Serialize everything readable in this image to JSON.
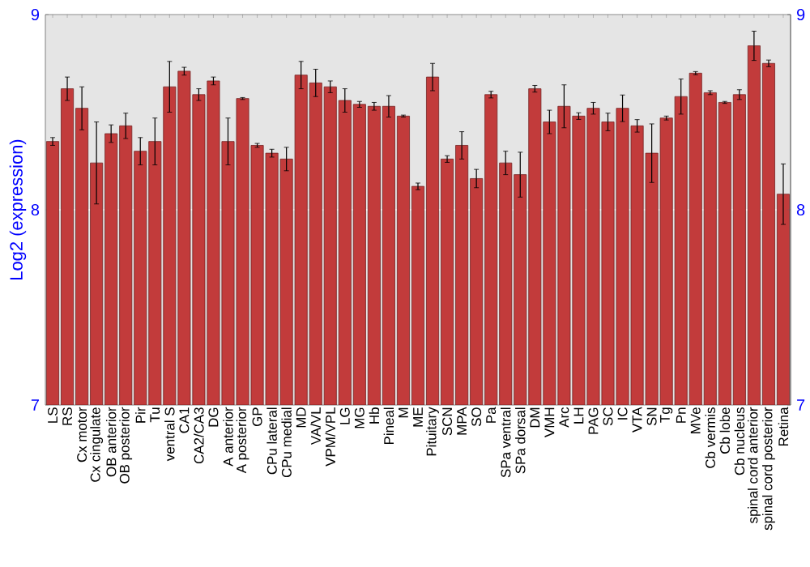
{
  "chart_data": {
    "type": "bar",
    "ylabel": "Log2 (expression)",
    "categories": [
      "LS",
      "RS",
      "Cx motor",
      "Cx cingulate",
      "OB anterior",
      "OB posterior",
      "Pir",
      "Tu",
      "ventral S",
      "CA1",
      "CA2/CA3",
      "DG",
      "A anterior",
      "A posterior",
      "GP",
      "CPu lateral",
      "CPu medial",
      "MD",
      "VA/VL",
      "VPM/VPL",
      "LG",
      "MG",
      "Hb",
      "Pineal",
      "M",
      "ME",
      "Pituitary",
      "SCN",
      "MPA",
      "SO",
      "Pa",
      "SPa ventral",
      "SPa dorsal",
      "DM",
      "VMH",
      "Arc",
      "LH",
      "PAG",
      "SC",
      "IC",
      "VTA",
      "SN",
      "Tg",
      "Pn",
      "MVe",
      "Cb vermis",
      "Cb lobe",
      "Cb nucleus",
      "spinal cord anterior",
      "spinal cord posterior",
      "Retina"
    ],
    "values": [
      8.35,
      8.62,
      8.52,
      8.24,
      8.39,
      8.43,
      8.3,
      8.35,
      8.63,
      8.71,
      8.59,
      8.66,
      8.35,
      8.57,
      8.33,
      8.29,
      8.26,
      8.69,
      8.65,
      8.63,
      8.56,
      8.54,
      8.53,
      8.53,
      8.48,
      8.12,
      8.68,
      8.26,
      8.33,
      8.16,
      8.59,
      8.24,
      8.18,
      8.62,
      8.45,
      8.53,
      8.48,
      8.52,
      8.45,
      8.52,
      8.43,
      8.29,
      8.47,
      8.58,
      8.7,
      8.6,
      8.55,
      8.59,
      8.84,
      8.75,
      8.08
    ],
    "errors": [
      0.02,
      0.06,
      0.11,
      0.21,
      0.045,
      0.065,
      0.07,
      0.12,
      0.13,
      0.02,
      0.03,
      0.02,
      0.12,
      0.005,
      0.01,
      0.02,
      0.06,
      0.07,
      0.07,
      0.03,
      0.06,
      0.015,
      0.02,
      0.055,
      0.005,
      0.017,
      0.07,
      0.017,
      0.07,
      0.047,
      0.017,
      0.06,
      0.115,
      0.017,
      0.06,
      0.11,
      0.017,
      0.03,
      0.045,
      0.068,
      0.032,
      0.15,
      0.01,
      0.09,
      0.008,
      0.01,
      0.005,
      0.025,
      0.075,
      0.017,
      0.155
    ],
    "color": "#c23b3b",
    "ylim": [
      7,
      9
    ],
    "yticks": [
      7,
      8,
      9
    ],
    "y2lim": [
      7,
      9
    ],
    "y2ticks": [
      7,
      8,
      9
    ],
    "grid": "y"
  }
}
